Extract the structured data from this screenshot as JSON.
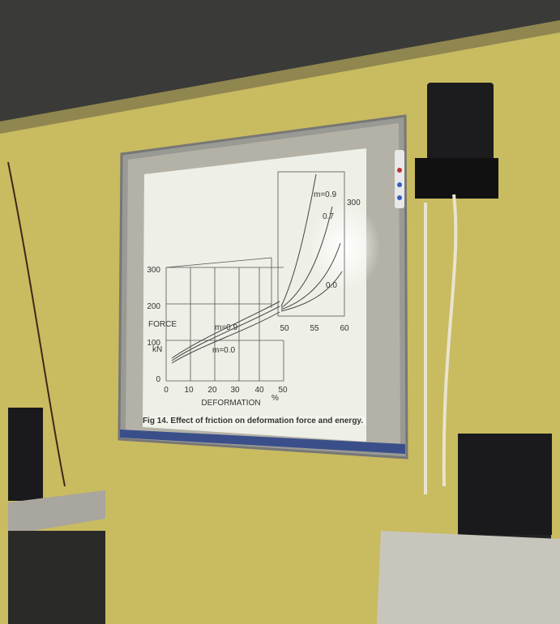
{
  "screen": {
    "caption": "Fig 14. Effect of friction on deformation force and energy.",
    "main_plot": {
      "y_label": "FORCE",
      "y_unit": "kN",
      "y_ticks": [
        "300",
        "200",
        "100",
        "0"
      ],
      "x_label": "DEFORMATION",
      "x_unit": "%",
      "x_ticks": [
        "0",
        "10",
        "20",
        "30",
        "40",
        "50"
      ],
      "curve_labels": [
        "m=0.9",
        "m=0.0"
      ]
    },
    "inset_plot": {
      "x_ticks": [
        "50",
        "55",
        "60"
      ],
      "side_label": "300",
      "curve_labels": [
        "m=0.9",
        "0.7",
        "0.0"
      ]
    }
  }
}
